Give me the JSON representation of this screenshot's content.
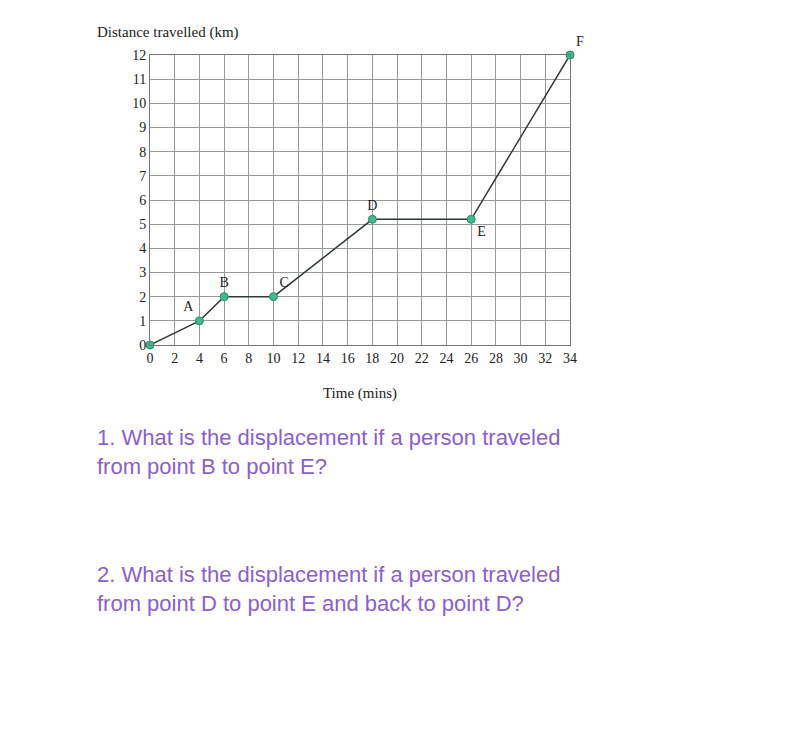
{
  "chart_data": {
    "type": "line",
    "ylabel": "Distance travelled (km)",
    "xlabel": "Time (mins)",
    "x": [
      0,
      4,
      6,
      10,
      18,
      26,
      34
    ],
    "values": [
      0,
      1,
      2,
      2,
      5.2,
      5.2,
      12
    ],
    "point_labels": [
      null,
      "A",
      "B",
      "C",
      "D",
      "E",
      "F"
    ],
    "color": "#2f3a34",
    "marker": "circle",
    "marker_color": "#3dbb8c",
    "xlim": [
      0,
      34
    ],
    "xticks": [
      0,
      2,
      4,
      6,
      8,
      10,
      12,
      14,
      16,
      18,
      20,
      22,
      24,
      26,
      28,
      30,
      32,
      34
    ],
    "ylim": [
      0,
      12
    ],
    "yticks": [
      0,
      1,
      2,
      3,
      4,
      5,
      6,
      7,
      8,
      9,
      10,
      11,
      12
    ],
    "grid": true,
    "annotations": [
      {
        "text": "1. What is the displacement if a person traveled\nfrom point B to point E?",
        "color": "#8a5fd0"
      },
      {
        "text": "2. What is the displacement if a person traveled\nfrom point D to point E and back to point D?",
        "color": "#8a5fd0"
      }
    ]
  }
}
